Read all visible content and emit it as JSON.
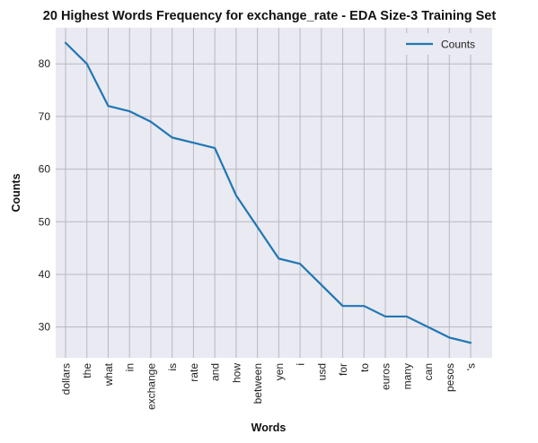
{
  "chart_data": {
    "type": "line",
    "title": "20 Highest Words Frequency for exchange_rate - EDA Size-3 Training Set",
    "xlabel": "Words",
    "ylabel": "Counts",
    "categories": [
      "dollars",
      "the",
      "what",
      "in",
      "exchange",
      "is",
      "rate",
      "and",
      "how",
      "between",
      "yen",
      "i",
      "usd",
      "for",
      "to",
      "euros",
      "many",
      "can",
      "pesos",
      "'s"
    ],
    "series": [
      {
        "name": "Counts",
        "values": [
          84,
          80,
          72,
          71,
          69,
          66,
          65,
          64,
          55,
          49,
          43,
          42,
          38,
          34,
          34,
          32,
          32,
          30,
          28,
          27
        ]
      }
    ],
    "ylim": [
      24.15,
      86.85
    ],
    "yticks": [
      30,
      40,
      50,
      60,
      70,
      80
    ],
    "grid": true,
    "legend_position": "top-right",
    "colors": {
      "line": "#1f77b4",
      "plot_background": "#eaeaf2",
      "grid": "#b8b8c2"
    }
  }
}
